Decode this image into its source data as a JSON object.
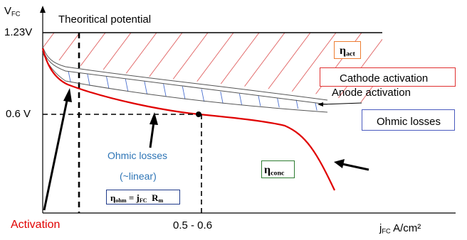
{
  "axes": {
    "y_label_main": "V",
    "y_label_sub": "FC",
    "y_tick_max": "1.23V",
    "y_tick_mid": "0.6 V",
    "x_label_main": "j",
    "x_label_sub": "FC",
    "x_label_unit": " A/cm²",
    "x_tick": "0.5 - 0.6"
  },
  "labels": {
    "theoretical": "Theoritical potential",
    "activation": "Activation",
    "ohmic_losses_curve": "Ohmic losses",
    "linear_note": "(~linear)"
  },
  "boxes": {
    "eta_act": {
      "eta": "η",
      "sub": "act"
    },
    "cathode": "Cathode activation",
    "anode": "Anode activation",
    "ohmic": "Ohmic losses",
    "eta_conc": {
      "eta": "η",
      "sub": "conc"
    },
    "eta_ohm": {
      "eta": "η",
      "sub": "ohm",
      "eq": " = j",
      "j_sub": "FC",
      "r": "  R",
      "r_sub": "m"
    }
  },
  "colors": {
    "curve": "#e00000",
    "activation_text": "#e00000",
    "ohmic_text": "#2e75b6",
    "hatch_red": "#e06060",
    "hatch_blue": "#4a6fd0",
    "box_orange": "#ed7d31",
    "box_red": "#e03030",
    "box_blue": "#4a5bbf",
    "box_green": "#2e7d32",
    "box_navy": "#1f3a8a"
  }
}
